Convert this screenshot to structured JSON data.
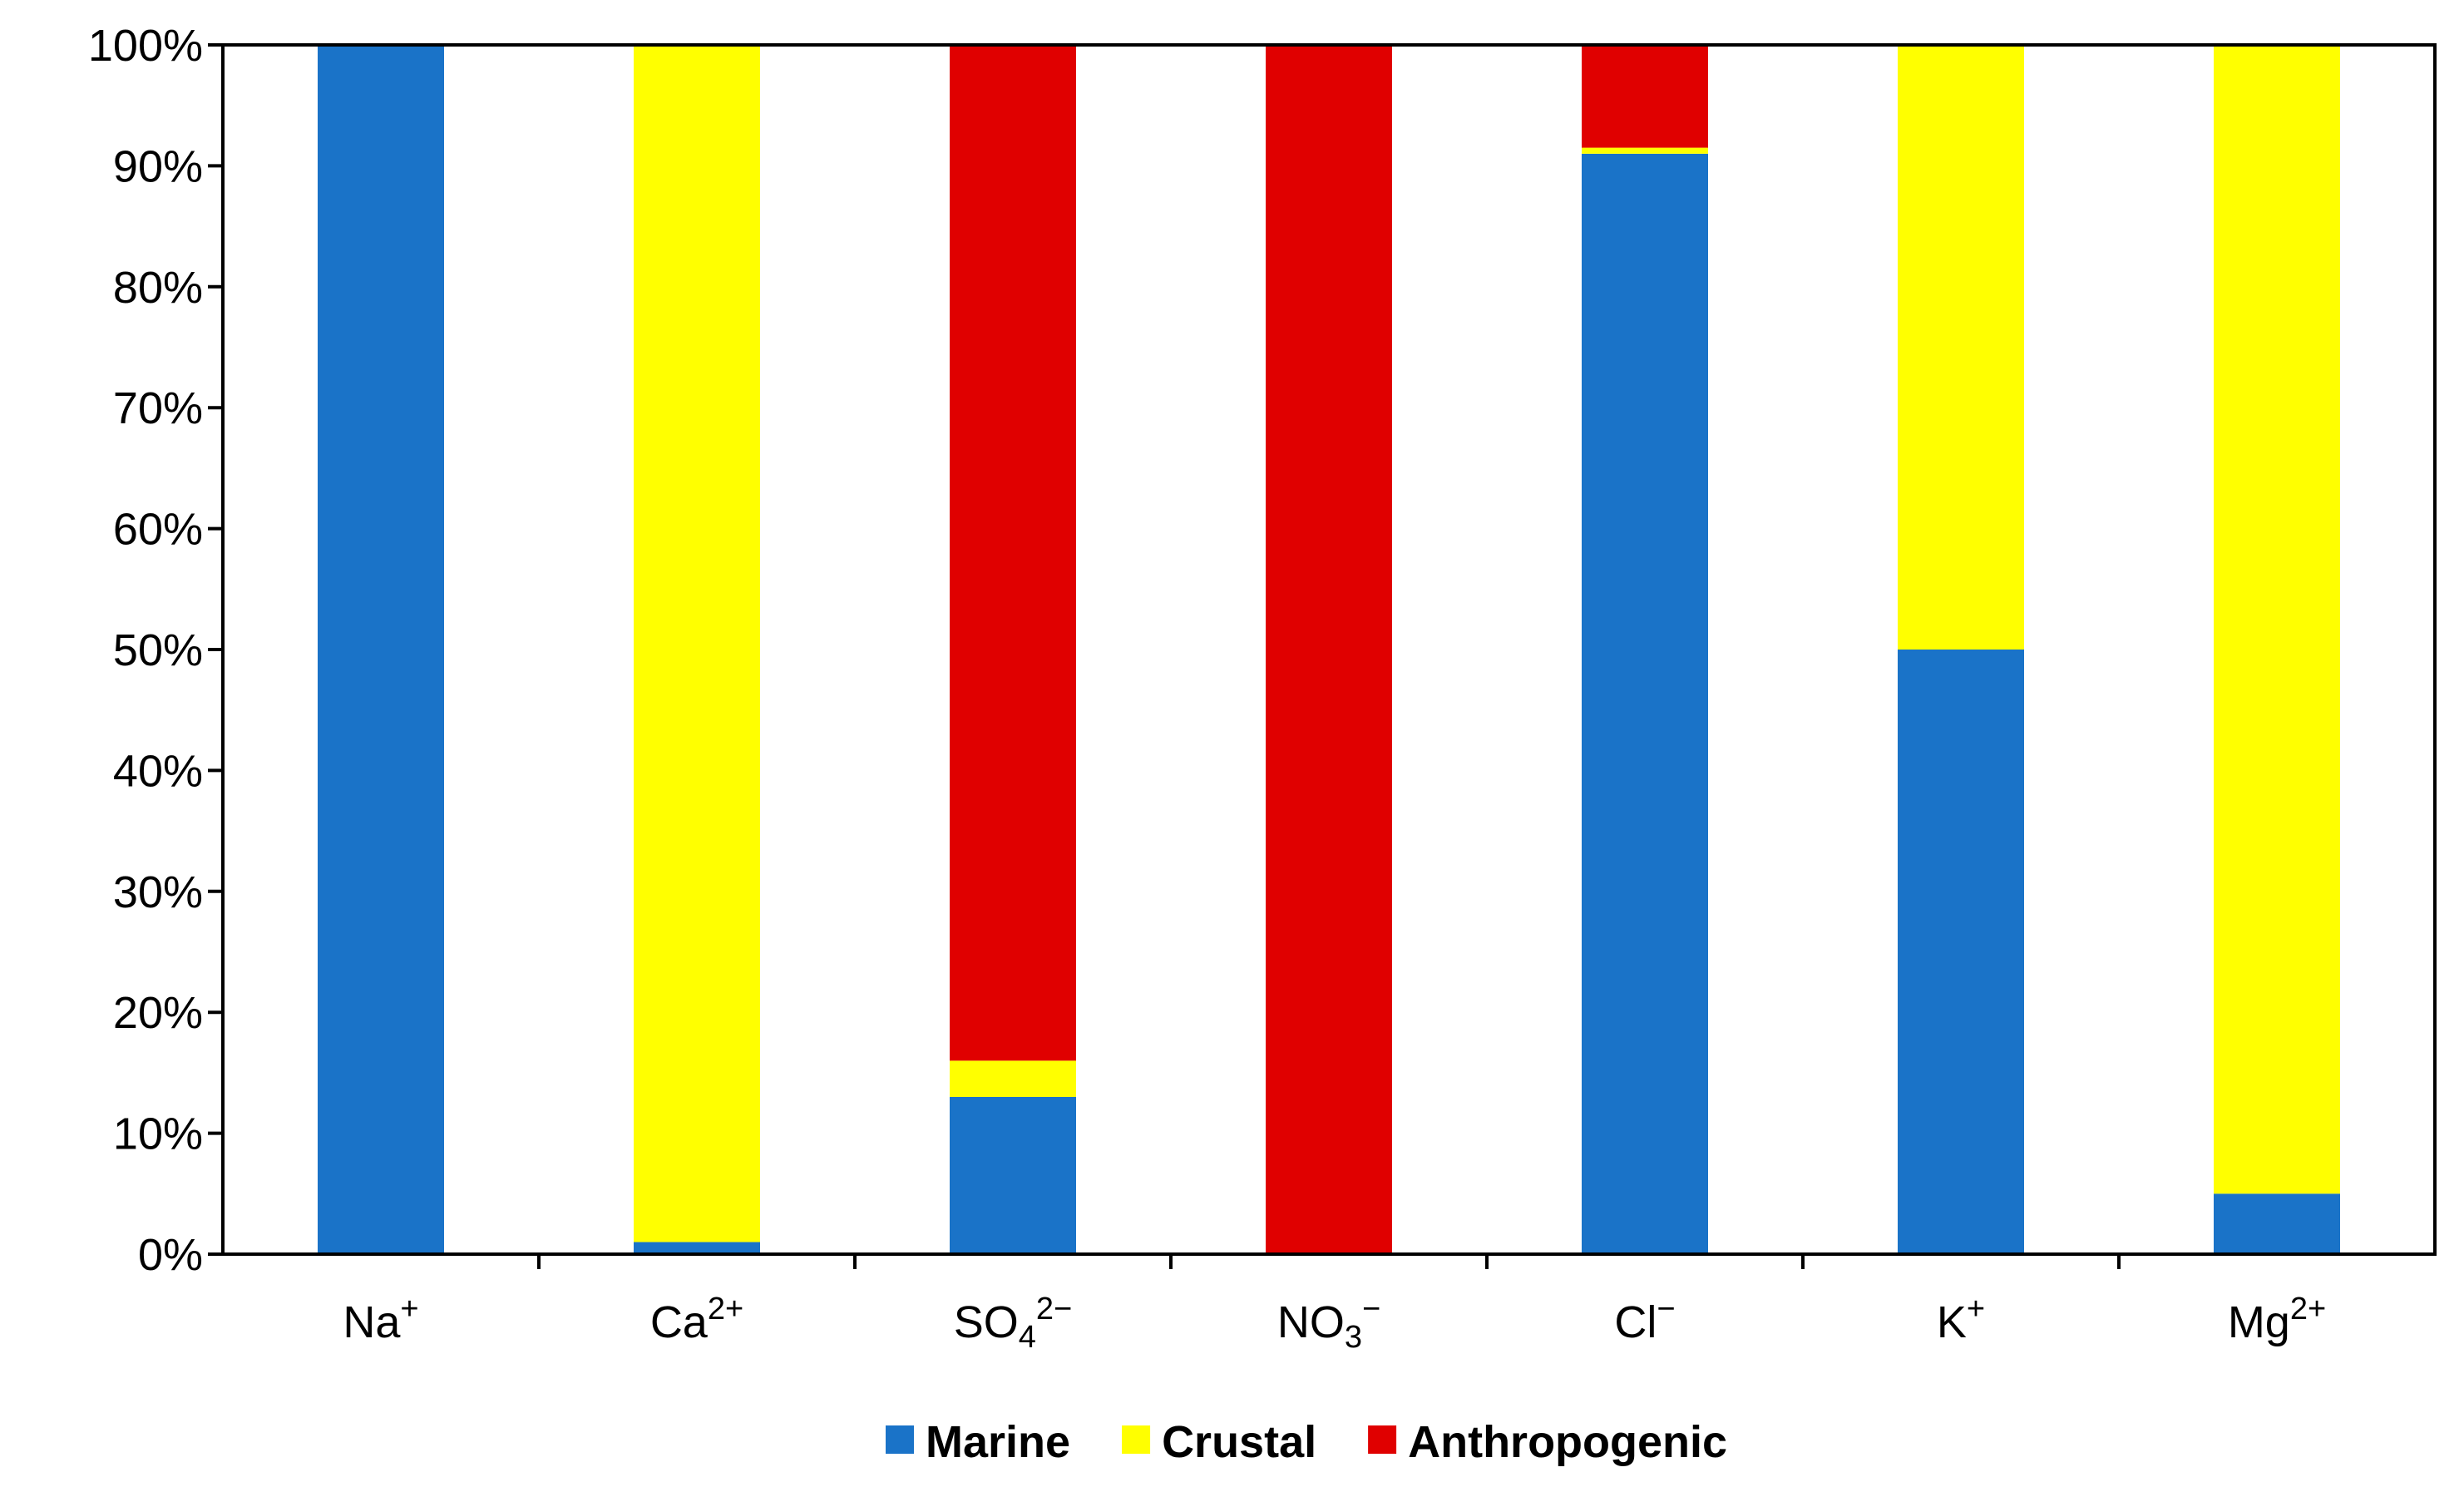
{
  "chart_data": {
    "type": "bar",
    "stacked": true,
    "percent": true,
    "title": "",
    "xlabel": "",
    "ylabel": "",
    "ylim": [
      0,
      100
    ],
    "y_ticks": [
      "0%",
      "10%",
      "20%",
      "30%",
      "40%",
      "50%",
      "60%",
      "70%",
      "80%",
      "90%",
      "100%"
    ],
    "grid": false,
    "legend_position": "bottom",
    "categories": [
      {
        "base": "Na",
        "sub": "",
        "sup": "+"
      },
      {
        "base": "Ca",
        "sub": "",
        "sup": "2+"
      },
      {
        "base": "SO",
        "sub": "4",
        "sup": "2−"
      },
      {
        "base": "NO",
        "sub": "3",
        "sup": "−"
      },
      {
        "base": "Cl",
        "sub": "",
        "sup": "−"
      },
      {
        "base": "K",
        "sub": "",
        "sup": "+"
      },
      {
        "base": "Mg",
        "sub": "",
        "sup": "2+"
      }
    ],
    "series": [
      {
        "name": "Marine",
        "color": "#1a73c8",
        "values": [
          100,
          1,
          13,
          0,
          91,
          50,
          5
        ]
      },
      {
        "name": "Crustal",
        "color": "#ffff00",
        "values": [
          0,
          99,
          3,
          0,
          0.5,
          50,
          95
        ]
      },
      {
        "name": "Anthropogenic",
        "color": "#e00000",
        "values": [
          0,
          0,
          84,
          100,
          8.5,
          0,
          0
        ]
      }
    ]
  }
}
